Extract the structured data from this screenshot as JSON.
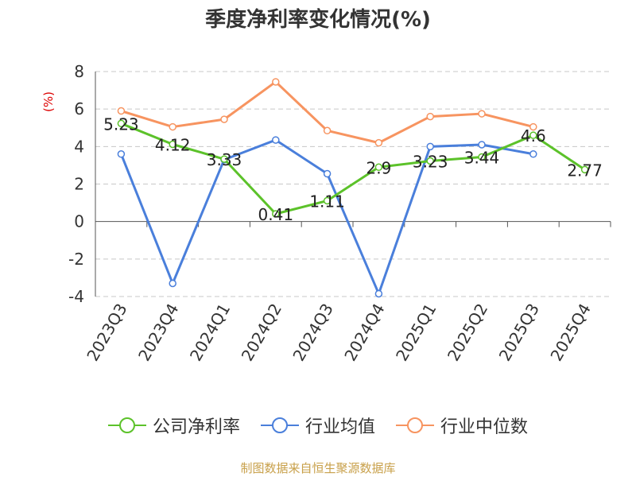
{
  "title": "季度净利率变化情况(%)",
  "source": "制图数据来自恒生聚源数据库",
  "chart_data": {
    "type": "line",
    "title": "季度净利率变化情况(%)",
    "ylabel": "(%)",
    "ylabel_color": "#dd0000",
    "categories": [
      "2023Q3",
      "2023Q4",
      "2024Q1",
      "2024Q2",
      "2024Q3",
      "2024Q4",
      "2025Q1",
      "2025Q2",
      "2025Q3",
      "2025Q4"
    ],
    "ylim": [
      -4,
      8
    ],
    "yticks": [
      -4,
      -2,
      0,
      2,
      4,
      6,
      8
    ],
    "grid": true,
    "legend_position": "bottom",
    "series": [
      {
        "name": "公司净利率",
        "color": "#5cc22a",
        "values": [
          5.23,
          4.12,
          3.33,
          0.41,
          1.11,
          2.9,
          3.23,
          3.44,
          4.6,
          2.77
        ],
        "labels": [
          "5.23",
          "4.12",
          "3.33",
          "0.41",
          "1.11",
          "2.9",
          "3.23",
          "3.44",
          "4.6",
          "2.77"
        ]
      },
      {
        "name": "行业均值",
        "color": "#4a7fdb",
        "values": [
          3.6,
          -3.3,
          3.3,
          4.35,
          2.55,
          -3.85,
          4.0,
          4.1,
          3.6,
          null
        ]
      },
      {
        "name": "行业中位数",
        "color": "#f79460",
        "values": [
          5.9,
          5.05,
          5.45,
          7.45,
          4.85,
          4.2,
          5.6,
          5.75,
          5.05,
          null
        ]
      }
    ]
  }
}
